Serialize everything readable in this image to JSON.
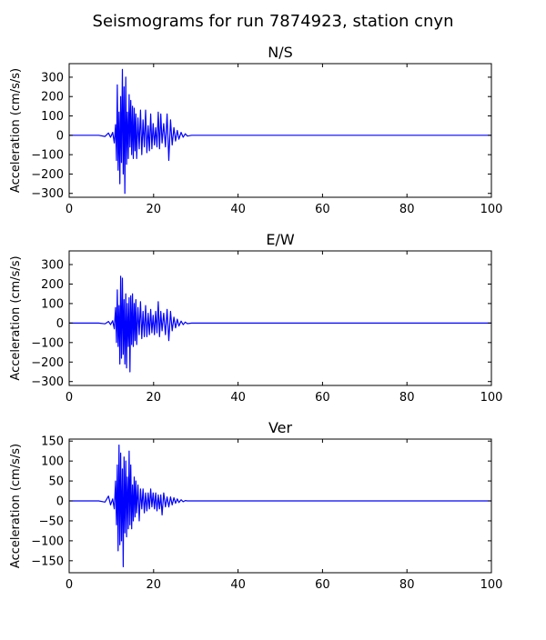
{
  "figure": {
    "title": "Seismograms for run 7874923, station cnyn"
  },
  "colors": {
    "trace": "#0000ff",
    "axes": "#000000",
    "background": "#ffffff"
  },
  "chart_data": [
    {
      "type": "line",
      "title": "N/S",
      "xlabel": "",
      "ylabel": "Acceleration (cm/s/s)",
      "xlim": [
        0,
        100
      ],
      "ylim": [
        -320,
        370
      ],
      "xticks": [
        0,
        20,
        40,
        60,
        80,
        100
      ],
      "yticks": [
        -300,
        -200,
        -100,
        0,
        100,
        200,
        300
      ],
      "grid": false,
      "x": [
        0,
        7,
        8.5,
        9.3,
        9.8,
        10.3,
        10.7,
        11.0,
        11.2,
        11.4,
        11.6,
        11.8,
        12.0,
        12.2,
        12.4,
        12.6,
        12.8,
        13.0,
        13.2,
        13.4,
        13.6,
        13.8,
        14.0,
        14.2,
        14.4,
        14.6,
        14.8,
        15.0,
        15.2,
        15.4,
        15.6,
        15.8,
        16.0,
        16.3,
        16.6,
        16.9,
        17.2,
        17.5,
        17.8,
        18.1,
        18.4,
        18.7,
        19.0,
        19.3,
        19.6,
        19.9,
        20.2,
        20.5,
        20.8,
        21.1,
        21.4,
        21.7,
        22.0,
        22.4,
        22.8,
        23.2,
        23.6,
        24.0,
        24.4,
        24.8,
        25.2,
        25.6,
        26.0,
        26.5,
        27.0,
        27.5,
        28.0,
        29.0,
        100
      ],
      "y": [
        0,
        0,
        -6,
        12,
        -10,
        15,
        -40,
        55,
        -130,
        260,
        -180,
        120,
        -250,
        200,
        -140,
        340,
        -200,
        250,
        -300,
        300,
        -150,
        120,
        -120,
        210,
        -60,
        180,
        -100,
        150,
        -120,
        140,
        -80,
        110,
        -120,
        90,
        -70,
        130,
        -100,
        80,
        -60,
        130,
        -90,
        50,
        -80,
        110,
        -70,
        60,
        -50,
        40,
        -60,
        120,
        -70,
        110,
        -40,
        60,
        -60,
        110,
        -130,
        80,
        -50,
        40,
        -30,
        25,
        -20,
        15,
        -10,
        8,
        -4,
        0,
        0
      ]
    },
    {
      "type": "line",
      "title": "E/W",
      "xlabel": "",
      "ylabel": "Acceleration (cm/s/s)",
      "xlim": [
        0,
        100
      ],
      "ylim": [
        -320,
        370
      ],
      "xticks": [
        0,
        20,
        40,
        60,
        80,
        100
      ],
      "yticks": [
        -300,
        -200,
        -100,
        0,
        100,
        200,
        300
      ],
      "grid": false,
      "x": [
        0,
        7,
        8.5,
        9.3,
        9.8,
        10.3,
        10.7,
        11.0,
        11.2,
        11.4,
        11.6,
        11.8,
        12.0,
        12.2,
        12.4,
        12.6,
        12.8,
        13.0,
        13.2,
        13.4,
        13.6,
        13.8,
        14.0,
        14.2,
        14.4,
        14.6,
        14.8,
        15.0,
        15.2,
        15.4,
        15.6,
        15.8,
        16.0,
        16.3,
        16.6,
        16.9,
        17.2,
        17.5,
        17.8,
        18.1,
        18.4,
        18.7,
        19.0,
        19.3,
        19.6,
        19.9,
        20.2,
        20.5,
        20.8,
        21.1,
        21.4,
        21.7,
        22.0,
        22.4,
        22.8,
        23.2,
        23.6,
        24.0,
        24.4,
        24.8,
        25.2,
        25.6,
        26.0,
        26.5,
        27.0,
        27.5,
        28.0,
        29.0,
        100
      ],
      "y": [
        0,
        0,
        -4,
        8,
        -8,
        12,
        -30,
        80,
        -100,
        170,
        -120,
        90,
        -210,
        240,
        -180,
        230,
        -160,
        120,
        -210,
        150,
        -230,
        100,
        -120,
        130,
        -250,
        140,
        -110,
        150,
        -120,
        100,
        -90,
        120,
        -110,
        80,
        -60,
        110,
        -80,
        60,
        -70,
        90,
        -70,
        50,
        -60,
        70,
        -50,
        40,
        -60,
        60,
        -50,
        110,
        -70,
        60,
        -40,
        50,
        -60,
        70,
        -90,
        60,
        -40,
        30,
        -25,
        20,
        -15,
        10,
        -8,
        5,
        -3,
        0,
        0
      ]
    },
    {
      "type": "line",
      "title": "Ver",
      "xlabel": "",
      "ylabel": "Acceleration (cm/s/s)",
      "xlim": [
        0,
        100
      ],
      "ylim": [
        -180,
        155
      ],
      "xticks": [
        0,
        20,
        40,
        60,
        80,
        100
      ],
      "yticks": [
        -150,
        -100,
        -50,
        0,
        50,
        100,
        150
      ],
      "grid": false,
      "x": [
        0,
        7,
        8.5,
        9.3,
        9.8,
        10.3,
        10.7,
        11.0,
        11.2,
        11.4,
        11.6,
        11.8,
        12.0,
        12.2,
        12.4,
        12.6,
        12.8,
        13.0,
        13.2,
        13.4,
        13.6,
        13.8,
        14.0,
        14.2,
        14.4,
        14.6,
        14.8,
        15.0,
        15.2,
        15.4,
        15.6,
        15.8,
        16.0,
        16.3,
        16.6,
        16.9,
        17.2,
        17.5,
        17.8,
        18.1,
        18.4,
        18.7,
        19.0,
        19.3,
        19.6,
        19.9,
        20.2,
        20.5,
        20.8,
        21.1,
        21.4,
        21.7,
        22.0,
        22.4,
        22.8,
        23.2,
        23.6,
        24.0,
        24.4,
        24.8,
        25.2,
        25.6,
        26.0,
        26.5,
        27.0,
        27.5,
        28.0,
        29.0,
        100
      ],
      "y": [
        0,
        0,
        -3,
        12,
        -10,
        5,
        -20,
        50,
        -60,
        90,
        -125,
        140,
        -110,
        120,
        -100,
        80,
        -165,
        110,
        -80,
        100,
        -90,
        60,
        -70,
        125,
        -60,
        90,
        -70,
        40,
        -50,
        60,
        -40,
        50,
        -30,
        40,
        -50,
        30,
        -20,
        30,
        -30,
        20,
        -25,
        20,
        -20,
        30,
        -15,
        20,
        -20,
        20,
        -25,
        15,
        -20,
        15,
        -35,
        20,
        -15,
        10,
        -15,
        10,
        -10,
        8,
        -6,
        5,
        -4,
        3,
        -2,
        1,
        0,
        0,
        0
      ]
    }
  ]
}
